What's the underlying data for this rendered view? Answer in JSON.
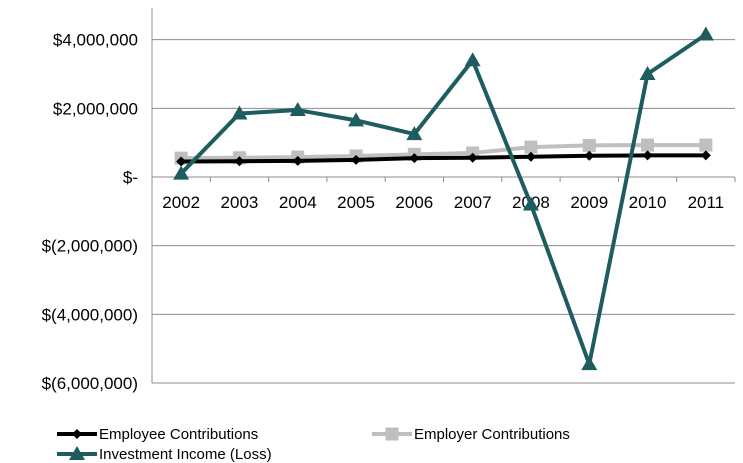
{
  "chart_data": {
    "type": "line",
    "title": "",
    "xlabel": "",
    "ylabel": "",
    "x": [
      "2002",
      "2003",
      "2004",
      "2005",
      "2006",
      "2007",
      "2008",
      "2009",
      "2010",
      "2011"
    ],
    "ylim": [
      -6000000,
      5000000
    ],
    "yticks": [
      4000000,
      2000000,
      0,
      -2000000,
      -4000000,
      -6000000
    ],
    "ytick_labels": [
      "$4,000,000",
      "$2,000,000",
      "$-",
      "$(2,000,000)",
      "$(4,000,000)",
      "$(6,000,000)"
    ],
    "grid": "horizontal",
    "legend_position": "bottom",
    "series": [
      {
        "name": "Employee Contributions",
        "marker": "diamond",
        "color": "#000000",
        "values": [
          450000,
          460000,
          470000,
          500000,
          550000,
          560000,
          590000,
          620000,
          630000,
          630000
        ]
      },
      {
        "name": "Employer Contributions",
        "marker": "square",
        "color": "#BFBFBF",
        "values": [
          550000,
          560000,
          580000,
          610000,
          660000,
          700000,
          870000,
          920000,
          930000,
          930000
        ]
      },
      {
        "name": "Investment Income (Loss)",
        "marker": "triangle",
        "color": "#1F5C60",
        "values": [
          100000,
          1850000,
          1950000,
          1650000,
          1250000,
          3400000,
          -800000,
          -5450000,
          3000000,
          4150000
        ]
      }
    ]
  }
}
